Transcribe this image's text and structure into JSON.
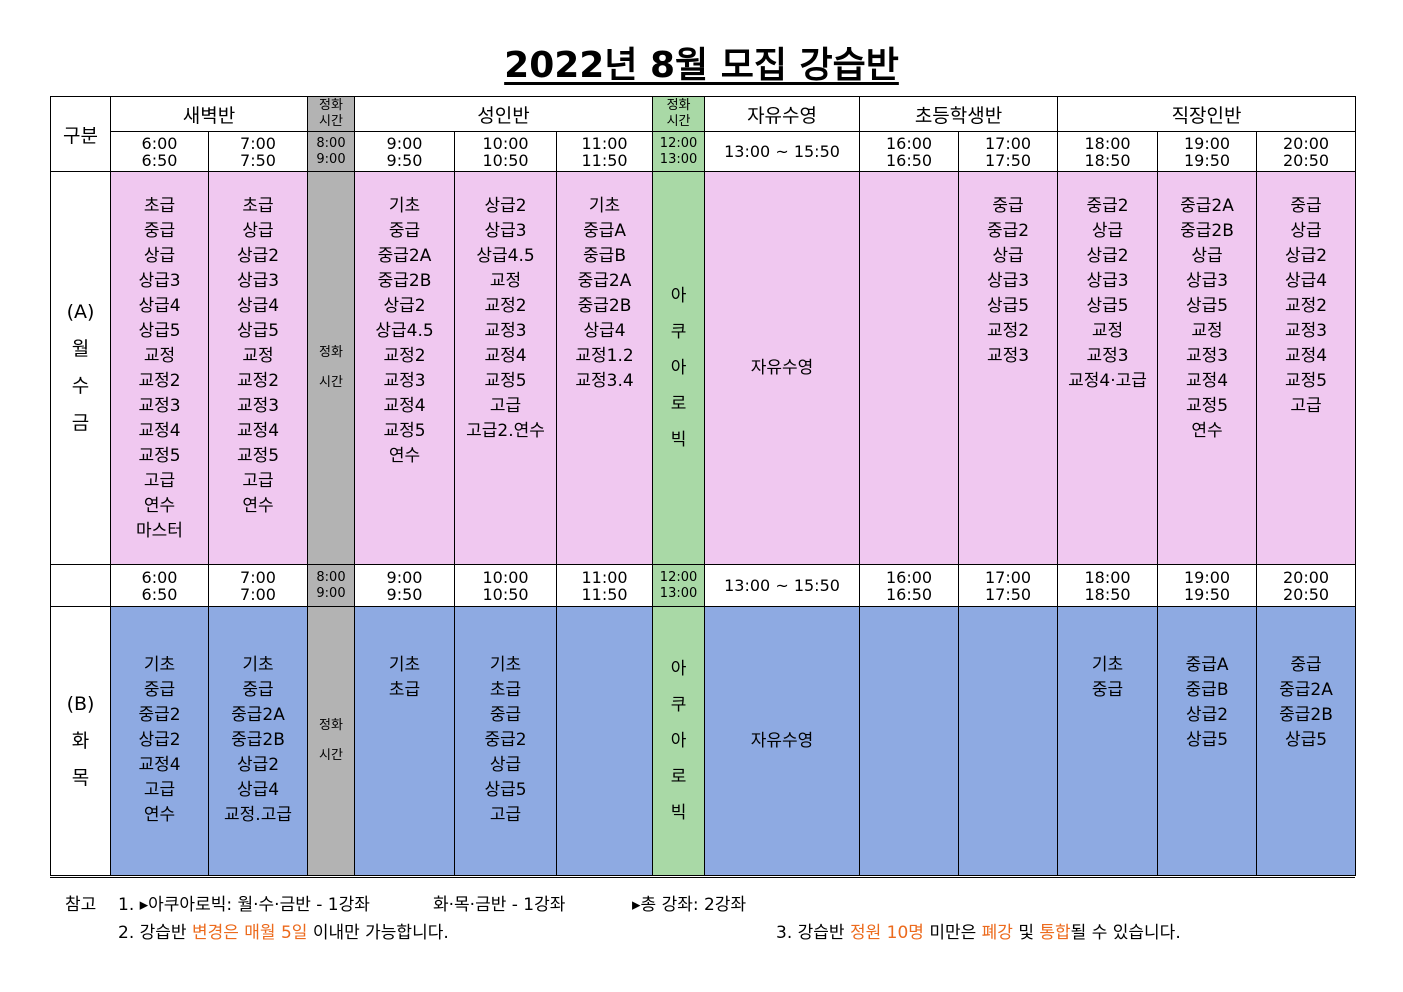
{
  "title": "2022년 8월 모집 강습반",
  "table": {
    "corner": "구분",
    "header": [
      [
        "새벽반"
      ],
      [
        "정화",
        "시간"
      ],
      [
        "성인반"
      ],
      [
        "정화",
        "시간"
      ],
      [
        "자유수영"
      ],
      [
        "초등학생반"
      ],
      [
        "직장인반"
      ]
    ],
    "sectionA": {
      "label": [
        "(A)",
        "월",
        "수",
        "금"
      ],
      "times": [
        [
          "6:00",
          "6:50"
        ],
        [
          "7:00",
          "7:50"
        ],
        [
          "8:00",
          "9:00"
        ],
        [
          "9:00",
          "9:50"
        ],
        [
          "10:00",
          "10:50"
        ],
        [
          "11:00",
          "11:50"
        ],
        [
          "12:00",
          "13:00"
        ],
        [
          "13:00 ~ 15:50"
        ],
        [
          "16:00",
          "16:50"
        ],
        [
          "17:00",
          "17:50"
        ],
        [
          "18:00",
          "18:50"
        ],
        [
          "19:00",
          "19:50"
        ],
        [
          "20:00",
          "20:50"
        ]
      ],
      "classes": [
        [
          "초급",
          "중급",
          "상급",
          "상급3",
          "상급4",
          "상급5",
          "교정",
          "교정2",
          "교정3",
          "교정4",
          "교정5",
          "고급",
          "연수",
          "마스터"
        ],
        [
          "초급",
          "상급",
          "상급2",
          "상급3",
          "상급4",
          "상급5",
          "교정",
          "교정2",
          "교정3",
          "교정4",
          "교정5",
          "고급",
          "연수"
        ],
        [
          "정화",
          "시간"
        ],
        [
          "기초",
          "중급",
          "중급2A",
          "중급2B",
          "상급2",
          "상급4.5",
          "교정2",
          "교정3",
          "교정4",
          "교정5",
          "연수"
        ],
        [
          "상급2",
          "상급3",
          "상급4.5",
          "교정",
          "교정2",
          "교정3",
          "교정4",
          "교정5",
          "고급",
          "고급2.연수"
        ],
        [
          "기초",
          "중급A",
          "중급B",
          "중급2A",
          "중급2B",
          "상급4",
          "교정1.2",
          "교정3.4"
        ],
        [
          "아",
          "쿠",
          "아",
          "로",
          "빅"
        ],
        [
          "자유수영"
        ],
        [],
        [
          "중급",
          "중급2",
          "상급",
          "상급3",
          "상급5",
          "교정2",
          "교정3"
        ],
        [
          "중급2",
          "상급",
          "상급2",
          "상급3",
          "상급5",
          "교정",
          "교정3",
          "교정4·고급"
        ],
        [
          "중급2A",
          "중급2B",
          "상급",
          "상급3",
          "상급5",
          "교정",
          "교정3",
          "교정4",
          "교정5",
          "연수"
        ],
        [
          "중급",
          "상급",
          "상급2",
          "상급4",
          "교정2",
          "교정3",
          "교정4",
          "교정5",
          "고급"
        ]
      ]
    },
    "sectionB": {
      "label": [
        "(B)",
        "화",
        "목"
      ],
      "times": [
        [
          "6:00",
          "6:50"
        ],
        [
          "7:00",
          "7:00"
        ],
        [
          "8:00",
          "9:00"
        ],
        [
          "9:00",
          "9:50"
        ],
        [
          "10:00",
          "10:50"
        ],
        [
          "11:00",
          "11:50"
        ],
        [
          "12:00",
          "13:00"
        ],
        [
          "13:00 ~ 15:50"
        ],
        [
          "16:00",
          "16:50"
        ],
        [
          "17:00",
          "17:50"
        ],
        [
          "18:00",
          "18:50"
        ],
        [
          "19:00",
          "19:50"
        ],
        [
          "20:00",
          "20:50"
        ]
      ],
      "classes": [
        [
          "기초",
          "중급",
          "중급2",
          "상급2",
          "교정4",
          "고급",
          "연수"
        ],
        [
          "기초",
          "중급",
          "중급2A",
          "중급2B",
          "상급2",
          "상급4",
          "교정.고급"
        ],
        [
          "정화",
          "시간"
        ],
        [
          "기초",
          "초급"
        ],
        [
          "기초",
          "초급",
          "중급",
          "중급2",
          "상급",
          "상급5",
          "고급"
        ],
        [],
        [
          "아",
          "쿠",
          "아",
          "로",
          "빅"
        ],
        [
          "자유수영"
        ],
        [],
        [],
        [
          "기초",
          "중급"
        ],
        [
          "중급A",
          "중급B",
          "상급2",
          "상급5"
        ],
        [
          "중급",
          "중급2A",
          "중급2B",
          "상급5"
        ]
      ]
    }
  },
  "notes": {
    "label": "참고",
    "line1": [
      "1. ▸아쿠아로빅: 월·수·금반 - 1강좌",
      "화·목·금반 - 1강좌",
      "▸총 강좌: 2강좌"
    ],
    "line2a": [
      {
        "text": "2. 강습반 "
      },
      {
        "text": "변경은 매월 5일",
        "emphasis": true
      },
      {
        "text": " 이내만 가능합니다."
      }
    ],
    "line2b": [
      {
        "text": "3. 강습반 "
      },
      {
        "text": "정원 10명",
        "emphasis": true
      },
      {
        "text": " 미만은 "
      },
      {
        "text": "폐강",
        "emphasis": true
      },
      {
        "text": " 및 "
      },
      {
        "text": "통합",
        "emphasis": true
      },
      {
        "text": "될 수 있습니다."
      }
    ]
  }
}
